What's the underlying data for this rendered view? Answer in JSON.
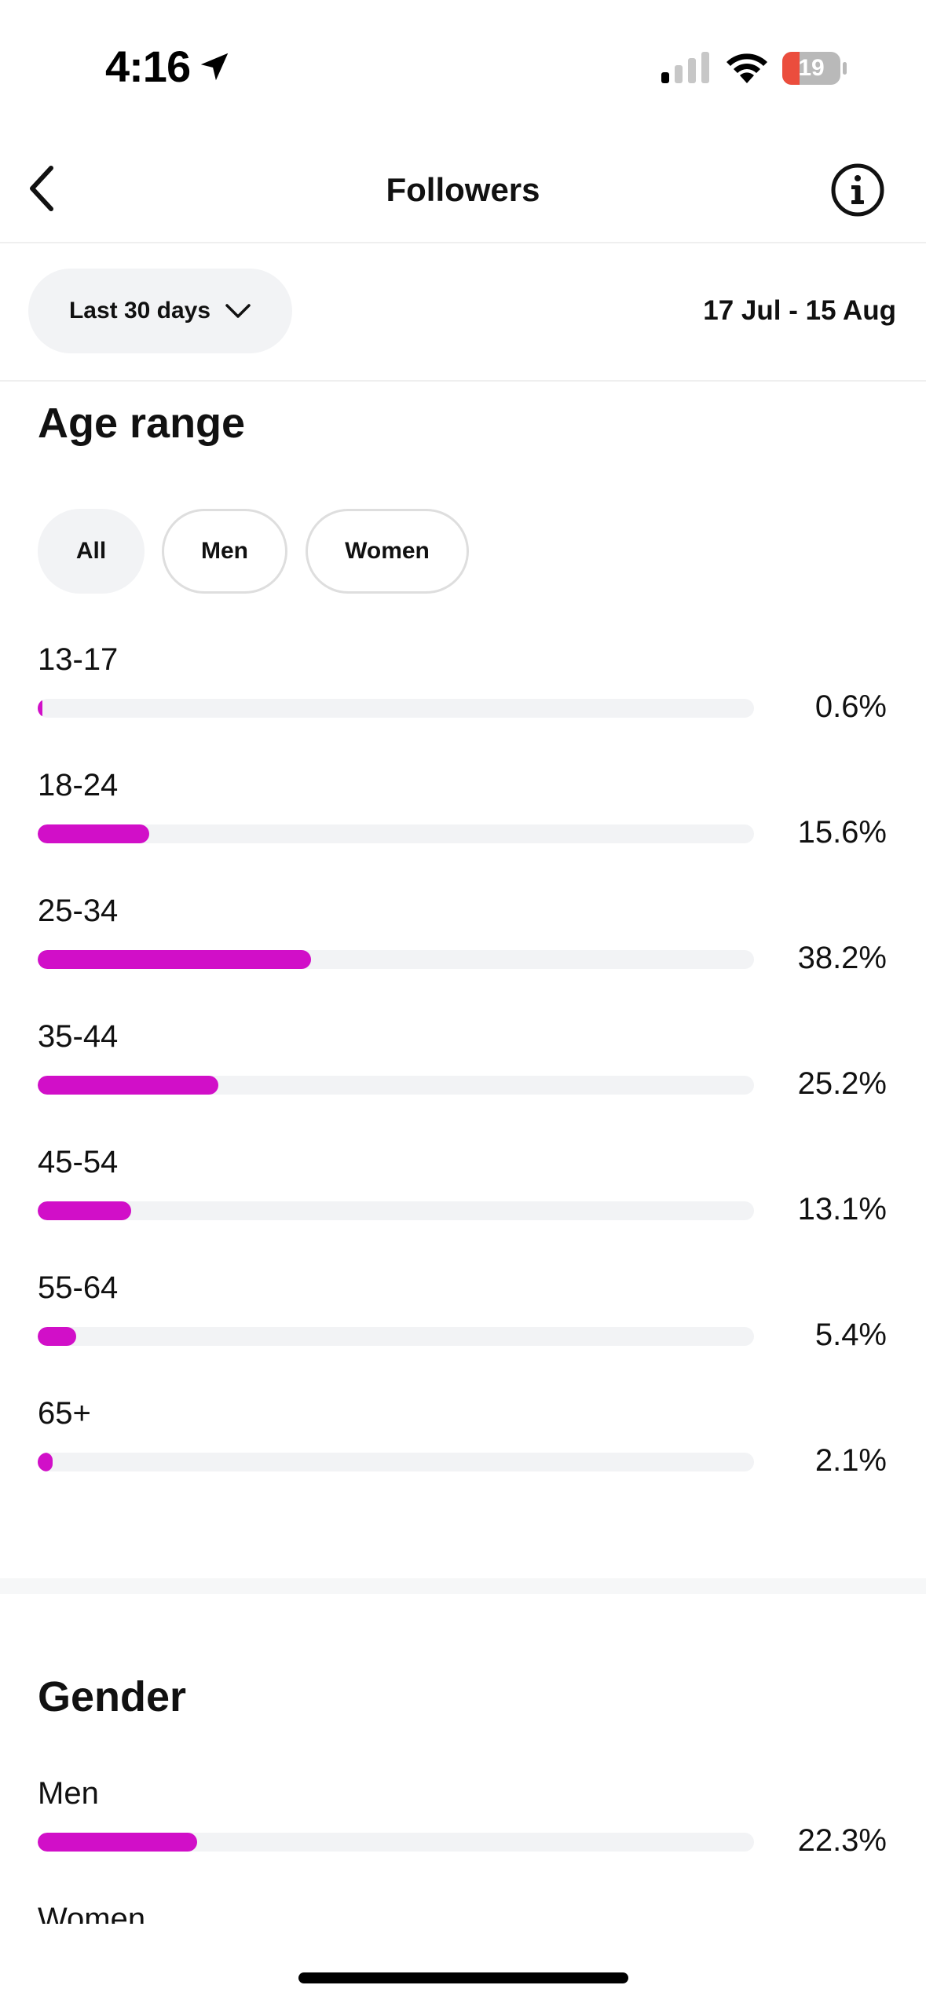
{
  "status_bar": {
    "time": "4:16",
    "battery": "19",
    "icons": [
      "location-arrow-icon",
      "signal-icon",
      "wifi-icon",
      "battery-icon"
    ]
  },
  "nav": {
    "title": "Followers",
    "back_icon": "chevron-left-icon",
    "info_icon": "info-icon"
  },
  "filter": {
    "period_label": "Last 30 days",
    "date_range": "17 Jul - 15 Aug"
  },
  "age_range": {
    "title": "Age range",
    "chips": [
      {
        "label": "All",
        "selected": true
      },
      {
        "label": "Men",
        "selected": false
      },
      {
        "label": "Women",
        "selected": false
      }
    ],
    "rows": [
      {
        "label": "13-17",
        "value": "0.6%",
        "fraction": 0.006
      },
      {
        "label": "18-24",
        "value": "15.6%",
        "fraction": 0.156
      },
      {
        "label": "25-34",
        "value": "38.2%",
        "fraction": 0.382
      },
      {
        "label": "35-44",
        "value": "25.2%",
        "fraction": 0.252
      },
      {
        "label": "45-54",
        "value": "13.1%",
        "fraction": 0.131
      },
      {
        "label": "55-64",
        "value": "5.4%",
        "fraction": 0.054
      },
      {
        "label": "65+",
        "value": "2.1%",
        "fraction": 0.021
      }
    ]
  },
  "gender": {
    "title": "Gender",
    "rows": [
      {
        "label": "Men",
        "value": "22.3%",
        "fraction": 0.223
      },
      {
        "label": "Women",
        "value": "",
        "fraction": null
      }
    ]
  },
  "colors": {
    "accent": "#D10FC8",
    "track": "#F2F3F5",
    "chip_selected": "#F2F3F5",
    "battery_low": "#EB4D3D"
  }
}
